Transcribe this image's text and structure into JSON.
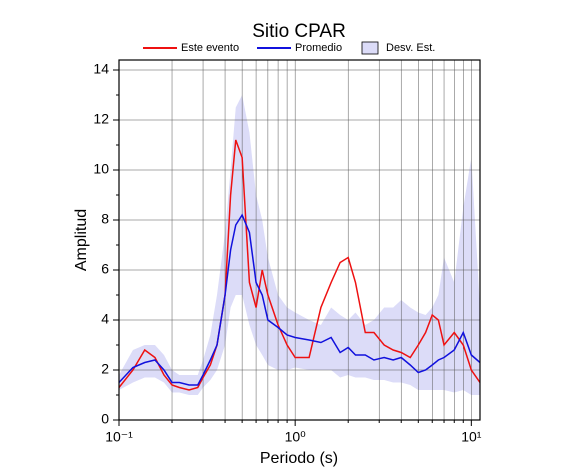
{
  "chart_data": {
    "type": "line",
    "title": "Sitio CPAR",
    "xlabel": "Periodo (s)",
    "ylabel": "Amplitud",
    "xscale": "log",
    "grid": true,
    "xlim": [
      0.1,
      11.2
    ],
    "ylim": [
      0,
      14.4
    ],
    "xticks": [
      {
        "value": 0.1,
        "label": "10⁻¹"
      },
      {
        "value": 1,
        "label": "10⁰"
      },
      {
        "value": 10,
        "label": "10¹"
      }
    ],
    "xminor": [
      0.2,
      0.3,
      0.4,
      0.5,
      0.6,
      0.7,
      0.8,
      0.9,
      2,
      3,
      4,
      5,
      6,
      7,
      8,
      9
    ],
    "yticks": [
      0,
      2,
      4,
      6,
      8,
      10,
      12,
      14
    ],
    "yminor": [
      1,
      3,
      5,
      7,
      9,
      11,
      13
    ],
    "x": [
      0.1,
      0.12,
      0.14,
      0.16,
      0.18,
      0.2,
      0.22,
      0.25,
      0.28,
      0.3,
      0.33,
      0.36,
      0.4,
      0.43,
      0.46,
      0.5,
      0.55,
      0.6,
      0.65,
      0.7,
      0.8,
      0.9,
      1.0,
      1.2,
      1.4,
      1.6,
      1.8,
      2.0,
      2.2,
      2.5,
      2.8,
      3.2,
      3.6,
      4,
      4.5,
      5,
      5.5,
      6,
      6.5,
      7,
      8,
      9,
      10,
      11.2
    ],
    "band": {
      "name": "Desv. Est.",
      "color": "#dcdcf8",
      "lower": [
        1.2,
        1.5,
        1.7,
        1.7,
        1.5,
        1.1,
        1.1,
        1.0,
        1.0,
        1.3,
        1.6,
        2.0,
        3.0,
        4.5,
        5.0,
        5.0,
        3.8,
        3.0,
        2.6,
        2.2,
        2.0,
        2.0,
        2.1,
        2.0,
        2.0,
        2.0,
        1.7,
        1.8,
        1.7,
        1.7,
        1.6,
        1.6,
        1.5,
        1.5,
        1.4,
        1.2,
        1.2,
        1.2,
        1.2,
        1.2,
        1.1,
        1.2,
        1.0,
        1.0
      ],
      "upper": [
        1.8,
        2.8,
        3.0,
        3.0,
        2.6,
        2.0,
        1.8,
        1.8,
        1.8,
        2.4,
        3.4,
        5.0,
        7.5,
        10,
        12.5,
        13,
        11.5,
        9,
        8,
        6.5,
        5,
        4.5,
        4.3,
        4.0,
        3.8,
        4.5,
        4.2,
        4.0,
        4.3,
        3.8,
        4.0,
        4.5,
        4.5,
        4.8,
        4.5,
        4.3,
        4.2,
        4.5,
        5.0,
        6.5,
        5.5,
        8.5,
        10.5,
        4.5
      ]
    },
    "series": [
      {
        "name": "Este evento",
        "color": "#ee1111",
        "values": [
          1.3,
          2.0,
          2.8,
          2.5,
          1.8,
          1.4,
          1.3,
          1.2,
          1.3,
          1.7,
          2.2,
          3.0,
          5.0,
          9.0,
          11.2,
          10.5,
          5.5,
          4.5,
          6.0,
          5.0,
          3.8,
          3.0,
          2.5,
          2.5,
          4.5,
          5.5,
          6.3,
          6.5,
          5.5,
          3.5,
          3.5,
          3.0,
          2.8,
          2.7,
          2.5,
          3.0,
          3.5,
          4.2,
          4.0,
          3.0,
          3.5,
          3.0,
          2.0,
          1.5
        ]
      },
      {
        "name": "Promedio",
        "color": "#1111dd",
        "values": [
          1.5,
          2.1,
          2.3,
          2.4,
          2.0,
          1.5,
          1.5,
          1.4,
          1.4,
          1.8,
          2.4,
          3.0,
          5.0,
          6.8,
          7.8,
          8.2,
          7.5,
          5.5,
          5.0,
          4.0,
          3.7,
          3.4,
          3.3,
          3.2,
          3.1,
          3.3,
          2.7,
          2.9,
          2.6,
          2.6,
          2.4,
          2.5,
          2.4,
          2.5,
          2.2,
          1.9,
          2.0,
          2.2,
          2.4,
          2.5,
          2.8,
          3.5,
          2.6,
          2.3
        ]
      }
    ]
  }
}
